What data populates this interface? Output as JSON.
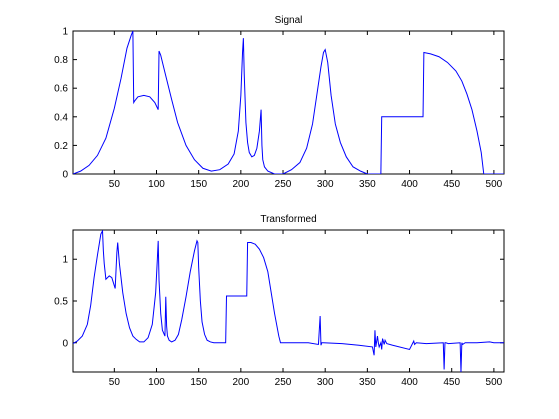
{
  "chart_data": [
    {
      "type": "line",
      "title": "Signal",
      "xlabel": "",
      "ylabel": "",
      "xlim": [
        1,
        512
      ],
      "ylim": [
        0,
        1
      ],
      "grid": false,
      "x_ticks": [
        50,
        100,
        150,
        200,
        250,
        300,
        350,
        400,
        450,
        500
      ],
      "y_ticks": [
        0,
        0.2,
        0.4,
        0.6,
        0.8,
        1
      ],
      "y_tick_labels": [
        "0",
        "0.2",
        "0.4",
        "0.6",
        "0.8",
        "1"
      ],
      "line_color": "#0000ff",
      "series": [
        {
          "x": [
            1,
            10,
            20,
            30,
            40,
            50,
            58,
            65,
            70,
            72,
            73,
            74,
            78,
            85,
            92,
            98,
            102,
            103,
            105,
            110,
            118,
            125,
            135,
            145,
            155,
            165,
            175,
            185,
            192,
            197,
            200,
            202,
            203,
            204,
            206,
            208,
            210,
            213,
            216,
            219,
            222,
            224,
            225,
            226,
            228,
            232,
            240,
            250,
            260,
            270,
            278,
            285,
            290,
            295,
            298,
            300,
            303,
            307,
            312,
            318,
            325,
            333,
            342,
            350,
            360,
            366,
            367,
            380,
            400,
            416,
            417,
            425,
            435,
            445,
            455,
            462,
            468,
            474,
            480,
            485,
            488,
            490,
            500,
            512
          ],
          "y": [
            0.0,
            0.02,
            0.06,
            0.13,
            0.25,
            0.46,
            0.67,
            0.88,
            0.97,
            1.0,
            0.5,
            0.51,
            0.54,
            0.55,
            0.54,
            0.5,
            0.45,
            0.86,
            0.83,
            0.71,
            0.52,
            0.36,
            0.2,
            0.1,
            0.04,
            0.02,
            0.03,
            0.07,
            0.14,
            0.3,
            0.55,
            0.85,
            0.95,
            0.7,
            0.36,
            0.22,
            0.15,
            0.12,
            0.13,
            0.18,
            0.3,
            0.45,
            0.2,
            0.1,
            0.05,
            0.02,
            0.0,
            0.0,
            0.03,
            0.08,
            0.18,
            0.35,
            0.55,
            0.75,
            0.85,
            0.87,
            0.78,
            0.55,
            0.35,
            0.22,
            0.12,
            0.05,
            0.02,
            0.0,
            0.0,
            0.0,
            0.4,
            0.4,
            0.4,
            0.4,
            0.85,
            0.84,
            0.82,
            0.78,
            0.72,
            0.65,
            0.56,
            0.45,
            0.3,
            0.15,
            0.0,
            0.0,
            0.0,
            0.0
          ]
        }
      ]
    },
    {
      "type": "line",
      "title": "Transformed",
      "xlabel": "",
      "ylabel": "",
      "xlim": [
        1,
        512
      ],
      "ylim": [
        -0.35,
        1.35
      ],
      "grid": false,
      "x_ticks": [
        50,
        100,
        150,
        200,
        250,
        300,
        350,
        400,
        450,
        500
      ],
      "y_ticks": [
        0,
        0.5,
        1
      ],
      "y_tick_labels": [
        "0",
        "0.5",
        "1"
      ],
      "line_color": "#0000ff",
      "series": [
        {
          "x": [
            1,
            6,
            12,
            18,
            22,
            26,
            30,
            34,
            36,
            37,
            38,
            40,
            44,
            47,
            51,
            53,
            54,
            56,
            60,
            64,
            68,
            72,
            76,
            80,
            85,
            90,
            95,
            99,
            101,
            102,
            103,
            105,
            107,
            110,
            111,
            112,
            113,
            115,
            118,
            122,
            126,
            130,
            135,
            140,
            145,
            148,
            149,
            150,
            152,
            154,
            157,
            160,
            164,
            168,
            172,
            176,
            180,
            182,
            183,
            200,
            207,
            208,
            212,
            217,
            222,
            227,
            232,
            236,
            240,
            245,
            247,
            260,
            280,
            292,
            294,
            295,
            296,
            298,
            320,
            340,
            356,
            358,
            359,
            360,
            362,
            363,
            364,
            366,
            367,
            368,
            370,
            371,
            373,
            380,
            400,
            405,
            406,
            408,
            420,
            440,
            441,
            442,
            443,
            446,
            460,
            461,
            462,
            463,
            466,
            480,
            495,
            500,
            512
          ],
          "y": [
            -0.01,
            0.02,
            0.08,
            0.22,
            0.45,
            0.78,
            1.05,
            1.3,
            1.34,
            1.1,
            0.95,
            0.76,
            0.8,
            0.78,
            0.65,
            1.08,
            1.2,
            0.95,
            0.6,
            0.35,
            0.18,
            0.08,
            0.04,
            0.01,
            0.01,
            0.06,
            0.22,
            0.6,
            1.0,
            1.22,
            0.75,
            0.35,
            0.15,
            0.08,
            0.55,
            0.2,
            0.08,
            0.03,
            0.01,
            0.03,
            0.1,
            0.28,
            0.55,
            0.85,
            1.1,
            1.22,
            1.2,
            0.9,
            0.5,
            0.25,
            0.1,
            0.03,
            0.01,
            0.0,
            0.0,
            0.0,
            0.0,
            0.0,
            0.56,
            0.56,
            0.56,
            1.2,
            1.2,
            1.18,
            1.12,
            1.02,
            0.85,
            0.6,
            0.35,
            0.08,
            0.0,
            0.0,
            0.0,
            -0.02,
            0.32,
            -0.03,
            0.0,
            0.0,
            -0.01,
            -0.03,
            -0.05,
            -0.15,
            0.15,
            -0.05,
            0.08,
            0.0,
            -0.05,
            0.0,
            -0.08,
            0.05,
            -0.02,
            0.03,
            -0.01,
            -0.03,
            -0.08,
            0.02,
            -0.02,
            0.0,
            -0.01,
            0.0,
            -0.32,
            0.0,
            0.0,
            -0.01,
            0.0,
            -0.35,
            0.0,
            -0.02,
            0.0,
            0.0,
            0.01,
            0.0,
            0.0
          ]
        }
      ]
    }
  ]
}
